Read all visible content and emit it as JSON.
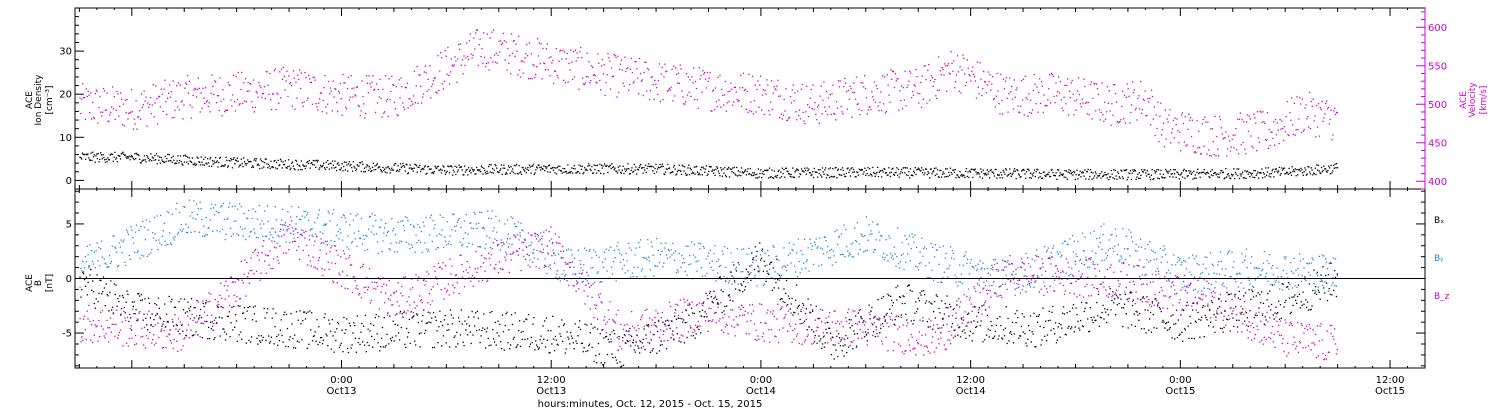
{
  "colors": {
    "black": "#000000",
    "magenta": "#d100d1",
    "blue": "#1e88e5"
  },
  "x_axis": {
    "title": "hours:minutes, Oct. 12, 2015 - Oct. 15, 2015",
    "ticks": [
      {
        "t": "2015-10-13T00:00",
        "time": "0:00",
        "date": "Oct13"
      },
      {
        "t": "2015-10-13T12:00",
        "time": "12:00",
        "date": "Oct13"
      },
      {
        "t": "2015-10-14T00:00",
        "time": "0:00",
        "date": "Oct14"
      },
      {
        "t": "2015-10-14T12:00",
        "time": "12:00",
        "date": "Oct14"
      },
      {
        "t": "2015-10-15T00:00",
        "time": "0:00",
        "date": "Oct15"
      },
      {
        "t": "2015-10-15T12:00",
        "time": "12:00",
        "date": "Oct15"
      }
    ]
  },
  "chart_data": [
    {
      "type": "scatter",
      "panel": "top",
      "xlim": [
        "2015-10-12T08:45",
        "2015-10-15T14:00"
      ],
      "left_axis": {
        "label_lines": [
          "ACE",
          "Ion Density",
          "[cm⁻³]"
        ],
        "ylim": [
          -2,
          40
        ],
        "ticks": [
          0,
          10,
          20,
          30
        ]
      },
      "right_axis": {
        "label_lines": [
          "ACE",
          "Velocity",
          "[km/s]"
        ],
        "ylim": [
          390,
          625
        ],
        "ticks": [
          400,
          450,
          500,
          550,
          600
        ]
      },
      "series": [
        {
          "color": "magenta",
          "axis": "right",
          "points": [
            [
              "2015-10-12T09:00",
              500
            ],
            [
              "2015-10-12T12:00",
              495
            ],
            [
              "2015-10-12T15:00",
              510
            ],
            [
              "2015-10-12T18:00",
              515
            ],
            [
              "2015-10-12T21:00",
              522
            ],
            [
              "2015-10-13T00:00",
              512
            ],
            [
              "2015-10-13T03:00",
              510
            ],
            [
              "2015-10-13T06:00",
              548
            ],
            [
              "2015-10-13T08:00",
              575
            ],
            [
              "2015-10-13T10:00",
              565
            ],
            [
              "2015-10-13T12:00",
              555
            ],
            [
              "2015-10-13T15:00",
              540
            ],
            [
              "2015-10-13T18:00",
              530
            ],
            [
              "2015-10-13T21:00",
              520
            ],
            [
              "2015-10-14T00:00",
              515
            ],
            [
              "2015-10-14T03:00",
              500
            ],
            [
              "2015-10-14T06:00",
              515
            ],
            [
              "2015-10-14T09:00",
              520
            ],
            [
              "2015-10-14T11:00",
              548
            ],
            [
              "2015-10-14T14:00",
              512
            ],
            [
              "2015-10-14T17:00",
              515
            ],
            [
              "2015-10-14T20:00",
              500
            ],
            [
              "2015-10-14T22:00",
              508
            ],
            [
              "2015-10-14T23:00",
              470
            ],
            [
              "2015-10-15T02:00",
              460
            ],
            [
              "2015-10-15T05:00",
              465
            ],
            [
              "2015-10-15T07:00",
              490
            ],
            [
              "2015-10-15T09:00",
              480
            ]
          ]
        },
        {
          "color": "black",
          "axis": "left",
          "points": [
            [
              "2015-10-12T09:00",
              5.5
            ],
            [
              "2015-10-12T12:00",
              5.5
            ],
            [
              "2015-10-12T18:00",
              4.2
            ],
            [
              "2015-10-13T00:00",
              3.5
            ],
            [
              "2015-10-13T06:00",
              2.5
            ],
            [
              "2015-10-13T12:00",
              2.8
            ],
            [
              "2015-10-13T18:00",
              2.8
            ],
            [
              "2015-10-14T00:00",
              1.8
            ],
            [
              "2015-10-14T06:00",
              2.0
            ],
            [
              "2015-10-14T12:00",
              1.8
            ],
            [
              "2015-10-14T18:00",
              1.5
            ],
            [
              "2015-10-15T00:00",
              1.5
            ],
            [
              "2015-10-15T06:00",
              2.0
            ],
            [
              "2015-10-15T09:00",
              3.0
            ]
          ]
        }
      ]
    },
    {
      "type": "scatter",
      "panel": "bottom",
      "xlim": [
        "2015-10-12T08:45",
        "2015-10-15T14:00"
      ],
      "left_axis": {
        "label_lines": [
          "ACE",
          "B",
          "[nT]"
        ],
        "ylim": [
          -8.2,
          8.2
        ],
        "ticks": [
          -5,
          0,
          5
        ]
      },
      "zero_line": true,
      "legend": [
        "Bₓ",
        "Bᵧ",
        "B_z"
      ],
      "series": [
        {
          "name": "Bₓ",
          "color": "black",
          "points": [
            [
              "2015-10-12T09:00",
              0.0
            ],
            [
              "2015-10-12T12:00",
              -3.0
            ],
            [
              "2015-10-12T18:00",
              -4.0
            ],
            [
              "2015-10-13T00:00",
              -5.0
            ],
            [
              "2015-10-13T06:00",
              -4.5
            ],
            [
              "2015-10-13T12:00",
              -5.0
            ],
            [
              "2015-10-13T16:00",
              -6.5
            ],
            [
              "2015-10-13T20:00",
              -4.0
            ],
            [
              "2015-10-14T00:00",
              2.0
            ],
            [
              "2015-10-14T04:00",
              -6.0
            ],
            [
              "2015-10-14T08:00",
              -2.0
            ],
            [
              "2015-10-14T12:00",
              -4.0
            ],
            [
              "2015-10-14T16:00",
              -4.5
            ],
            [
              "2015-10-14T20:00",
              -2.5
            ],
            [
              "2015-10-15T00:00",
              -4.0
            ],
            [
              "2015-10-15T06:00",
              -2.0
            ],
            [
              "2015-10-15T09:00",
              0.0
            ]
          ]
        },
        {
          "name": "Bᵧ",
          "color": "blue",
          "points": [
            [
              "2015-10-12T09:00",
              1.0
            ],
            [
              "2015-10-12T15:00",
              5.5
            ],
            [
              "2015-10-12T21:00",
              5.0
            ],
            [
              "2015-10-13T03:00",
              4.0
            ],
            [
              "2015-10-13T09:00",
              4.5
            ],
            [
              "2015-10-13T13:00",
              1.0
            ],
            [
              "2015-10-13T18:00",
              2.0
            ],
            [
              "2015-10-14T00:00",
              1.0
            ],
            [
              "2015-10-14T06:00",
              4.0
            ],
            [
              "2015-10-14T10:00",
              1.5
            ],
            [
              "2015-10-14T14:00",
              0.0
            ],
            [
              "2015-10-14T20:00",
              3.5
            ],
            [
              "2015-10-15T00:00",
              0.5
            ],
            [
              "2015-10-15T04:00",
              1.0
            ],
            [
              "2015-10-15T09:00",
              0.5
            ]
          ]
        },
        {
          "name": "B_z",
          "color": "magenta",
          "points": [
            [
              "2015-10-12T09:00",
              -4.0
            ],
            [
              "2015-10-12T15:00",
              -5.0
            ],
            [
              "2015-10-12T21:00",
              4.0
            ],
            [
              "2015-10-13T03:00",
              -2.0
            ],
            [
              "2015-10-13T09:00",
              2.0
            ],
            [
              "2015-10-13T12:00",
              3.0
            ],
            [
              "2015-10-13T16:00",
              -5.0
            ],
            [
              "2015-10-13T21:00",
              -3.0
            ],
            [
              "2015-10-14T00:00",
              -4.0
            ],
            [
              "2015-10-14T06:00",
              -4.5
            ],
            [
              "2015-10-14T10:00",
              -5.5
            ],
            [
              "2015-10-14T14:00",
              0.5
            ],
            [
              "2015-10-14T20:00",
              0.0
            ],
            [
              "2015-10-15T02:00",
              -2.0
            ],
            [
              "2015-10-15T06:00",
              -5.5
            ],
            [
              "2015-10-15T09:00",
              -6.0
            ]
          ]
        }
      ]
    }
  ]
}
